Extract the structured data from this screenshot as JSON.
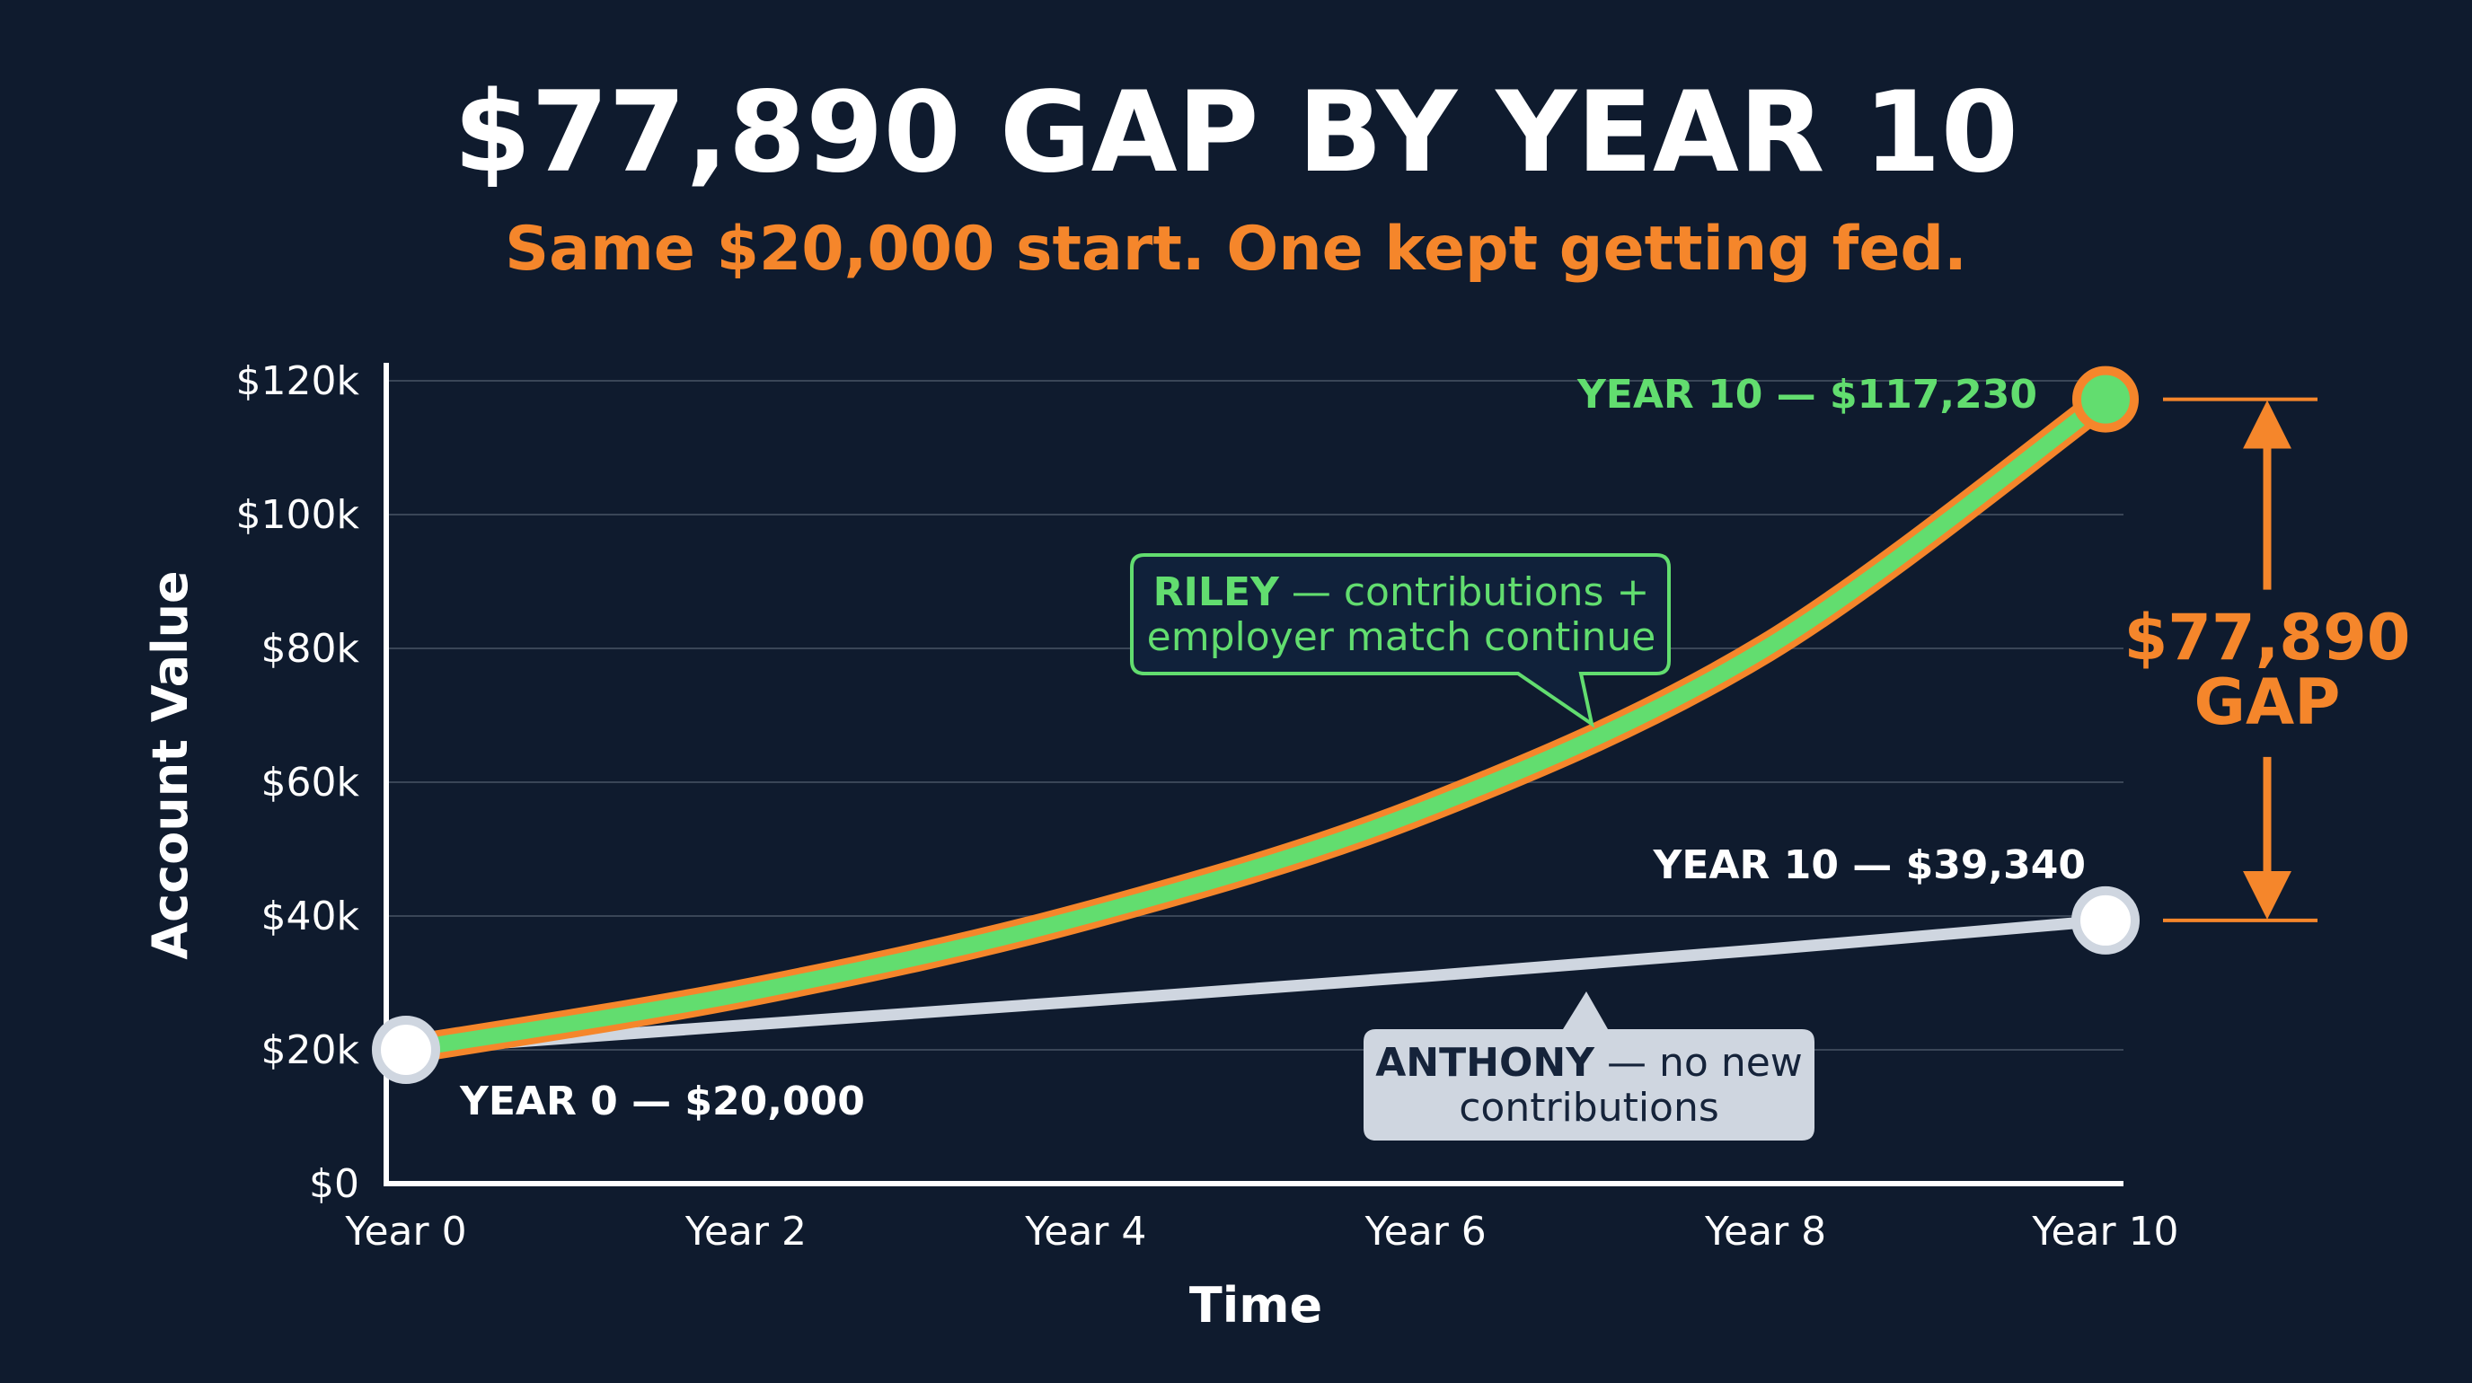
{
  "title": "$77,890 GAP BY YEAR 10",
  "subtitle": "Same $20,000 start. One kept getting fed.",
  "colors": {
    "background": "#0f1b2e",
    "riley_line": "#62dd6f",
    "riley_outline": "#f5862b",
    "anthony_line": "#cfd6e0",
    "gap": "#f5862b",
    "text": "#ffffff",
    "grid": "#3a4657"
  },
  "chart_data": {
    "type": "line",
    "title": "$77,890 GAP BY YEAR 10",
    "subtitle": "Same $20,000 start. One kept getting fed.",
    "xlabel": "Time",
    "ylabel": "Account Value",
    "categories": [
      "Year 0",
      "Year 2",
      "Year 4",
      "Year 6",
      "Year 8",
      "Year 10"
    ],
    "x": [
      0,
      2,
      4,
      6,
      8,
      10
    ],
    "x_tick_labels": [
      "Year 0",
      "Year 2",
      "Year 4",
      "Year 6",
      "Year 8",
      "Year 10"
    ],
    "y_tick_values": [
      0,
      20000,
      40000,
      60000,
      80000,
      100000,
      120000
    ],
    "y_tick_labels": [
      "$0",
      "$20k",
      "$40k",
      "$60k",
      "$80k",
      "$100k",
      "$120k"
    ],
    "ylim": [
      0,
      120000
    ],
    "xlim": [
      0,
      10
    ],
    "grid": true,
    "series": [
      {
        "key": "riley",
        "x": [
          0,
          2,
          4,
          6,
          8,
          10
        ],
        "values": [
          20000,
          28500,
          40000,
          56000,
          80000,
          117230
        ]
      },
      {
        "key": "anthony",
        "x": [
          0,
          2,
          4,
          6,
          8,
          10
        ],
        "values": [
          20000,
          23700,
          27300,
          31000,
          35000,
          39340
        ]
      }
    ],
    "annotations": {
      "riley_end": "YEAR 10 — $117,230",
      "anthony_end": "YEAR 10 — $39,340",
      "start": "YEAR 0 — $20,000",
      "riley_callout_bold": "RILEY",
      "riley_callout_line1_rest": " — contributions +",
      "riley_callout_line2": "employer match continue",
      "anthony_callout_bold": "ANTHONY",
      "anthony_callout_line1_rest": " — no new",
      "anthony_callout_line2": "contributions",
      "gap_value": "$77,890",
      "gap_label": "GAP"
    }
  }
}
